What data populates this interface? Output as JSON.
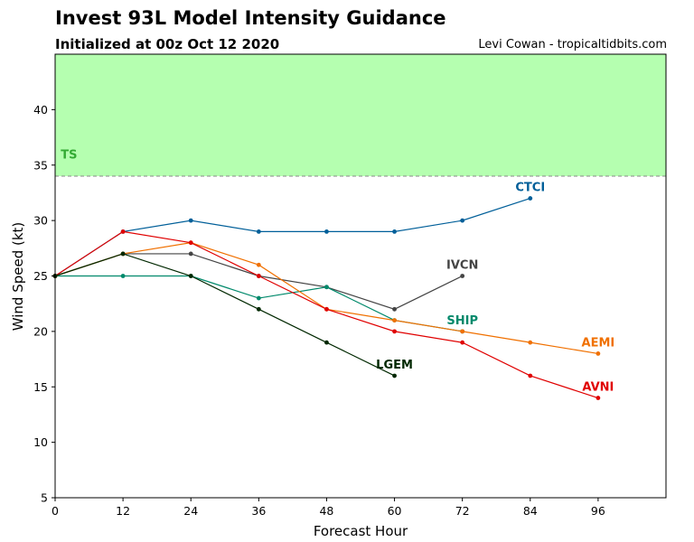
{
  "header": {
    "title": "Invest 93L Model Intensity Guidance",
    "subtitle": "Initialized at 00z Oct 12 2020",
    "credit": "Levi Cowan - tropicaltidbits.com"
  },
  "chart_data": {
    "type": "line",
    "xlabel": "Forecast Hour",
    "ylabel": "Wind Speed (kt)",
    "xlim": [
      0,
      108
    ],
    "ylim": [
      5,
      45
    ],
    "xticks": [
      0,
      12,
      24,
      36,
      48,
      60,
      72,
      84,
      96
    ],
    "yticks": [
      5,
      10,
      15,
      20,
      25,
      30,
      35,
      40
    ],
    "grid": false,
    "bands": [
      {
        "label": "TS",
        "from": 34,
        "to": 45,
        "fill": "#b5ffb0",
        "line": "#888888",
        "label_color": "#33aa33"
      }
    ],
    "series": [
      {
        "name": "CTCI",
        "color": "#005f99",
        "x": [
          0,
          12,
          24,
          36,
          48,
          60,
          72,
          84
        ],
        "y": [
          25,
          29,
          30,
          29,
          29,
          29,
          30,
          32
        ]
      },
      {
        "name": "IVCN",
        "color": "#444444",
        "x": [
          0,
          12,
          24,
          36,
          48,
          60,
          72
        ],
        "y": [
          25,
          27,
          27,
          25,
          24,
          22,
          25
        ]
      },
      {
        "name": "SHIP",
        "color": "#00896b",
        "x": [
          0,
          12,
          24,
          36,
          48,
          60,
          72
        ],
        "y": [
          25,
          25,
          25,
          23,
          24,
          21,
          20
        ]
      },
      {
        "name": "AEMI",
        "color": "#f07000",
        "x": [
          0,
          12,
          24,
          36,
          48,
          60,
          72,
          84,
          96
        ],
        "y": [
          25,
          27,
          28,
          26,
          22,
          21,
          20,
          19,
          18
        ]
      },
      {
        "name": "AVNI",
        "color": "#e00000",
        "x": [
          0,
          12,
          24,
          36,
          48,
          60,
          72,
          84,
          96
        ],
        "y": [
          25,
          29,
          28,
          25,
          22,
          20,
          19,
          16,
          14
        ]
      },
      {
        "name": "LGEM",
        "color": "#002800",
        "x": [
          0,
          12,
          24,
          36,
          48,
          60
        ],
        "y": [
          25,
          27,
          25,
          22,
          19,
          16
        ]
      }
    ]
  }
}
